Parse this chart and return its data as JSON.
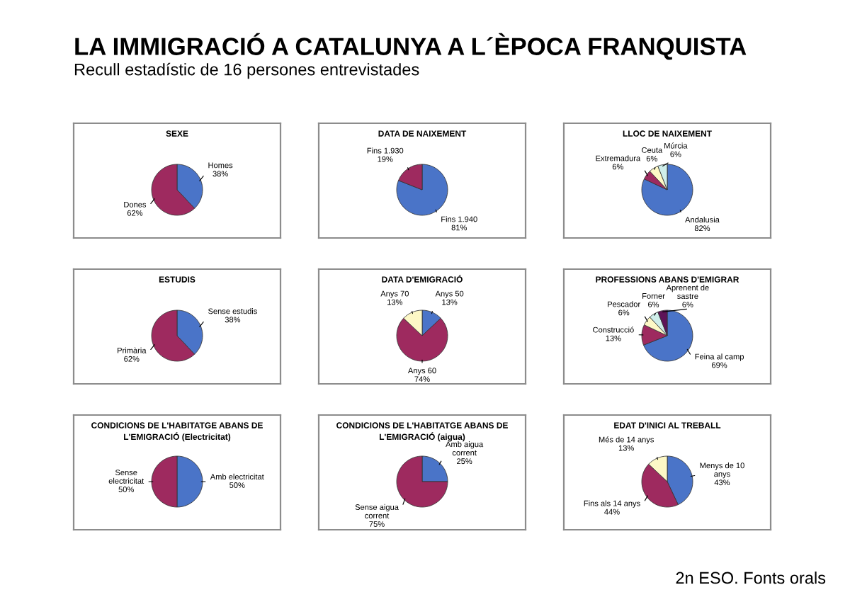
{
  "chart_data": [
    {
      "type": "other",
      "title": "LA IMMIGRACIÓ A CATALUNYA A L´ÈPOCA FRANQUISTA",
      "subtitle": "Recull estadístic de 16 persones entrevistades",
      "annotations": [
        "2n ESO. Fonts orals"
      ]
    },
    {
      "type": "pie",
      "title": "SEXE",
      "categories": [
        "Homes",
        "Dones"
      ],
      "values": [
        38,
        62
      ],
      "colors": [
        "#4a74c8",
        "#9e2a5f"
      ],
      "value_labels": [
        "38%",
        "62%"
      ]
    },
    {
      "type": "pie",
      "title": "DATA DE NAIXEMENT",
      "categories": [
        "Fins 1.940",
        "Fins 1.930"
      ],
      "values": [
        81,
        19
      ],
      "colors": [
        "#4a74c8",
        "#9e2a5f"
      ],
      "value_labels": [
        "81%",
        "19%"
      ]
    },
    {
      "type": "pie",
      "title": "LLOC DE NAIXEMENT",
      "categories": [
        "Andalusia",
        "Extremadura",
        "Ceuta",
        "Múrcia"
      ],
      "values": [
        82,
        6,
        6,
        6
      ],
      "colors": [
        "#4a74c8",
        "#9e2a5f",
        "#fdf8c6",
        "#cfeeea"
      ],
      "value_labels": [
        "82%",
        "6%",
        "6%",
        "6%"
      ]
    },
    {
      "type": "pie",
      "title": "ESTUDIS",
      "categories": [
        "Sense estudis",
        "Primària"
      ],
      "values": [
        38,
        62
      ],
      "colors": [
        "#4a74c8",
        "#9e2a5f"
      ],
      "value_labels": [
        "38%",
        "62%"
      ]
    },
    {
      "type": "pie",
      "title": "DATA D'EMIGRACIÓ",
      "categories": [
        "Anys 50",
        "Anys 60",
        "Anys 70"
      ],
      "values": [
        13,
        74,
        13
      ],
      "colors": [
        "#4a74c8",
        "#9e2a5f",
        "#fdf8c6"
      ],
      "value_labels": [
        "13%",
        "74%",
        "13%"
      ]
    },
    {
      "type": "pie",
      "title": "PROFESSIONS ABANS D'EMIGRAR",
      "categories": [
        "Feina al camp",
        "Construcció",
        "Pescador",
        "Forner",
        "Aprenent de sastre"
      ],
      "values": [
        69,
        13,
        6,
        6,
        6
      ],
      "colors": [
        "#4a74c8",
        "#9e2a5f",
        "#fdf8c6",
        "#cfeeea",
        "#5e1358"
      ],
      "value_labels": [
        "69%",
        "13%",
        "6%",
        "6%",
        "6%"
      ]
    },
    {
      "type": "pie",
      "title": "CONDICIONS DE L'HABITATGE ABANS DE L'EMIGRACIÓ (Electricitat)",
      "categories": [
        "Amb electricitat",
        "Sense electricitat"
      ],
      "values": [
        50,
        50
      ],
      "colors": [
        "#4a74c8",
        "#9e2a5f"
      ],
      "value_labels": [
        "50%",
        "50%"
      ]
    },
    {
      "type": "pie",
      "title": "CONDICIONS DE L'HABITATGE ABANS DE L'EMIGRACIÓ (aigua)",
      "categories": [
        "Amb aigua corrent",
        "Sense aigua corrent"
      ],
      "values": [
        25,
        75
      ],
      "colors": [
        "#4a74c8",
        "#9e2a5f"
      ],
      "value_labels": [
        "25%",
        "75%"
      ]
    },
    {
      "type": "pie",
      "title": "EDAT D'INICI AL TREBALL",
      "categories": [
        "Menys de 10 anys",
        "Fins als 14 anys",
        "Més de 14 anys"
      ],
      "values": [
        43,
        44,
        13
      ],
      "colors": [
        "#4a74c8",
        "#9e2a5f",
        "#fdf8c6"
      ],
      "value_labels": [
        "43%",
        "44%",
        "13%"
      ]
    }
  ]
}
